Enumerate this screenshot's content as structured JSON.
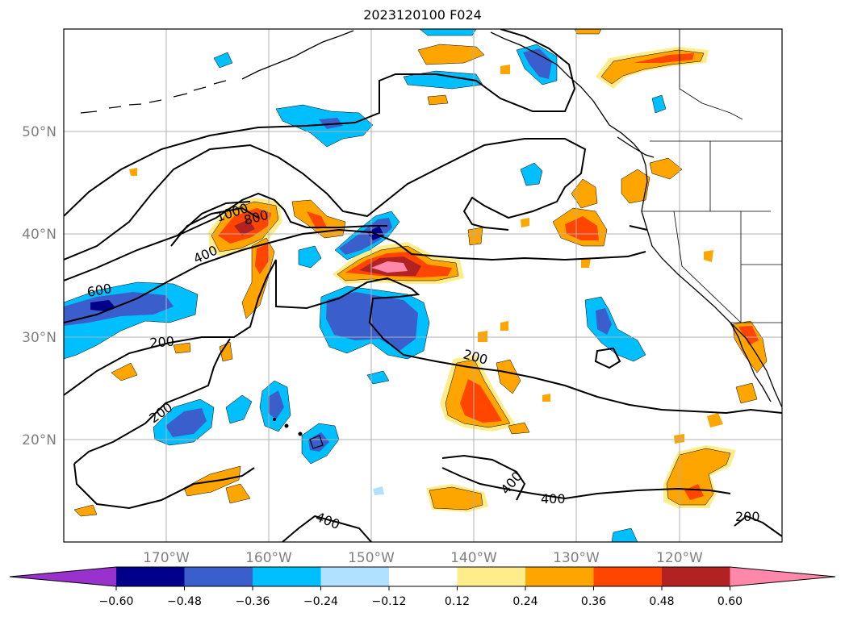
{
  "title": "2023120100 F024",
  "lat_labels": [
    "50°N",
    "40°N",
    "30°N",
    "20°N"
  ],
  "lon_labels": [
    "170°W",
    "160°W",
    "150°W",
    "140°W",
    "130°W",
    "120°W"
  ],
  "contour_labels": [
    "1000",
    "800",
    "600",
    "400",
    "200",
    "200",
    "200",
    "400",
    "400",
    "200"
  ],
  "colorbar": {
    "tick_labels": [
      "−0.60",
      "−0.48",
      "−0.36",
      "−0.24",
      "−0.12",
      "0.12",
      "0.24",
      "0.36",
      "0.48",
      "0.60"
    ],
    "colors": [
      "#9932cc",
      "#00008b",
      "#3a5fcd",
      "#00bfff",
      "#b0e2ff",
      "#ffffff",
      "#ffec8b",
      "#ffa500",
      "#ff4500",
      "#b22222",
      "#ff88aa"
    ],
    "levels": [
      -0.6,
      -0.48,
      -0.36,
      -0.24,
      -0.12,
      0.12,
      0.24,
      0.36,
      0.48,
      0.6
    ],
    "extend": "both"
  },
  "map": {
    "lon_range": [
      -180,
      -110
    ],
    "lat_range": [
      10,
      60
    ],
    "grid": true,
    "projection": "plate carree"
  }
}
